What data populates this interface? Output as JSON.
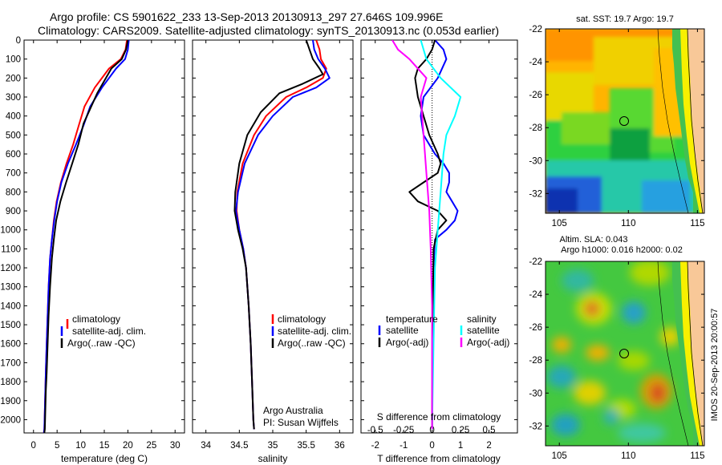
{
  "header": {
    "line1": "Argo profile: CS 5901622_233 13-Sep-2013 20130913_297 27.646S 109.996E",
    "line2": "Climatology: CARS2009. Satellite-adjusted climatology: synTS_20130913.nc (0.053d earlier)"
  },
  "colors": {
    "clim": "#ff0000",
    "sat": "#0000ff",
    "argo": "#000000",
    "sal_sat": "#00ffff",
    "sal_argo": "#ff00ff"
  },
  "depth_axis": {
    "ticks": [
      "0",
      "100",
      "200",
      "300",
      "400",
      "500",
      "600",
      "700",
      "800",
      "900",
      "1000",
      "1100",
      "1200",
      "1300",
      "1400",
      "1500",
      "1600",
      "1700",
      "1800",
      "1900",
      "2000"
    ]
  },
  "chart_data": [
    {
      "type": "line",
      "xlabel": "temperature (deg C)",
      "xlim": [
        -2,
        32
      ],
      "ylim": [
        2070,
        0
      ],
      "x_ticks": [
        "0",
        "5",
        "10",
        "15",
        "20",
        "25",
        "30"
      ],
      "legend": [
        "climatology",
        "satellite-adj. clim.",
        "Argo(..raw -QC)"
      ],
      "series": [
        {
          "name": "climatology",
          "color": "#ff0000",
          "x": [
            19.8,
            19.5,
            18.5,
            16,
            13,
            10.8,
            9.6,
            8.4,
            7.0,
            5.8,
            4.9,
            4.3,
            3.9,
            3.5,
            3.2,
            3.0,
            2.8,
            2.6,
            2.5,
            2.4,
            2.3,
            2.2
          ],
          "y": [
            0,
            50,
            100,
            150,
            250,
            350,
            450,
            550,
            650,
            750,
            850,
            950,
            1050,
            1150,
            1300,
            1450,
            1600,
            1750,
            1850,
            1950,
            2050,
            2070
          ]
        },
        {
          "name": "satellite-adj. clim.",
          "color": "#0000ff",
          "x": [
            20.2,
            20,
            19.4,
            17.5,
            14.5,
            12,
            10.6,
            9,
            7.3,
            5.9,
            5.0,
            4.4,
            3.9,
            3.5,
            3.2,
            3.0,
            2.8,
            2.6,
            2.5,
            2.4,
            2.3,
            2.2
          ],
          "y": [
            0,
            50,
            100,
            150,
            250,
            350,
            450,
            550,
            650,
            750,
            850,
            950,
            1050,
            1150,
            1300,
            1450,
            1600,
            1750,
            1850,
            1950,
            2050,
            2070
          ]
        },
        {
          "name": "Argo(..raw -QC)",
          "color": "#000000",
          "x": [
            20,
            19.6,
            18.7,
            16.5,
            13.5,
            10.6,
            9.5,
            8.2,
            6.9,
            5.7,
            4.8,
            4.3,
            3.9,
            3.5,
            3.2,
            3.0,
            2.8,
            2.6,
            2.5,
            2.4,
            2.3
          ],
          "y": [
            0,
            50,
            100,
            150,
            280,
            440,
            550,
            650,
            750,
            850,
            950,
            1050,
            1150,
            1300,
            1450,
            1600,
            1750,
            1850,
            1950,
            2050,
            2070
          ]
        }
      ]
    },
    {
      "type": "line",
      "xlabel": "salinity",
      "xlim": [
        33.8,
        36.2
      ],
      "ylim": [
        2070,
        0
      ],
      "x_ticks": [
        "34",
        "34.5",
        "35",
        "35.5",
        "36"
      ],
      "legend": [
        "climatology",
        "satellite-adj. clim.",
        "Argo(..raw -QC)"
      ],
      "annotation": [
        "Argo Australia",
        "PI: Susan Wijffels"
      ],
      "series": [
        {
          "name": "climatology",
          "color": "#ff0000",
          "x": [
            35.65,
            35.7,
            35.72,
            35.8,
            35.75,
            35.5,
            35.2,
            34.9,
            34.72,
            34.55,
            34.47,
            34.46,
            34.5,
            34.56,
            34.6,
            34.64,
            34.67,
            34.69,
            34.7,
            34.71,
            34.72
          ],
          "y": [
            0,
            50,
            100,
            150,
            200,
            250,
            300,
            400,
            500,
            650,
            800,
            900,
            1000,
            1100,
            1200,
            1400,
            1600,
            1800,
            1900,
            2000,
            2050
          ]
        },
        {
          "name": "satellite-adj. clim.",
          "color": "#0000ff",
          "x": [
            35.6,
            35.62,
            35.68,
            35.78,
            35.85,
            35.65,
            35.3,
            35.0,
            34.78,
            34.58,
            34.48,
            34.45,
            34.5,
            34.56,
            34.6,
            34.64,
            34.67,
            34.69,
            34.7,
            34.71,
            34.72
          ],
          "y": [
            0,
            50,
            100,
            150,
            200,
            250,
            300,
            400,
            500,
            650,
            800,
            900,
            1000,
            1100,
            1200,
            1400,
            1600,
            1800,
            1900,
            2000,
            2050
          ]
        },
        {
          "name": "Argo(..raw -QC)",
          "color": "#000000",
          "x": [
            35.5,
            35.55,
            35.6,
            35.7,
            35.75,
            35.45,
            35.1,
            34.82,
            34.62,
            34.5,
            34.44,
            34.43,
            34.48,
            34.55,
            34.6,
            34.64,
            34.67,
            34.69,
            34.7,
            34.71,
            34.72
          ],
          "y": [
            0,
            50,
            100,
            150,
            180,
            230,
            280,
            380,
            500,
            650,
            800,
            900,
            1000,
            1100,
            1200,
            1400,
            1600,
            1800,
            1900,
            2000,
            2050
          ]
        }
      ]
    },
    {
      "type": "line",
      "xlabel": "T difference from climatology",
      "xlabel_top": "S difference from climatology",
      "xlim": [
        -2.5,
        3
      ],
      "ylim": [
        2070,
        0
      ],
      "x_ticks": [
        "-2",
        "-1",
        "0",
        "1",
        "2"
      ],
      "x_ticks_s": [
        "-0.5",
        "-0.25",
        "0",
        "0.25",
        "0.5"
      ],
      "legend_t": {
        "title": "temperature",
        "items": [
          "satellite",
          "Argo(-adj)"
        ]
      },
      "legend_s": {
        "title": "salinity",
        "items": [
          "satellite",
          "Argo(-adj)"
        ]
      },
      "series": [
        {
          "name": "temperature satellite",
          "color": "#0000ff",
          "x": [
            0.1,
            0.4,
            0.5,
            0.2,
            -0.3,
            -0.4,
            -0.3,
            0.1,
            0.4,
            0.6,
            0.6,
            0.5,
            0.7,
            0.9,
            0.8,
            0.5,
            0.1,
            0.05,
            0.02,
            0
          ],
          "y": [
            0,
            50,
            100,
            200,
            300,
            400,
            500,
            600,
            650,
            700,
            750,
            800,
            850,
            900,
            950,
            1000,
            1050,
            1200,
            1600,
            2050
          ]
        },
        {
          "name": "temperature Argo(-adj)",
          "color": "#000000",
          "x": [
            0.1,
            0.0,
            -0.2,
            -0.5,
            -0.6,
            -0.5,
            -0.3,
            -0.1,
            0.2,
            0.3,
            0.2,
            -0.3,
            -0.8,
            -0.5,
            0.2,
            0.5,
            0.2,
            0.05,
            0.02,
            0
          ],
          "y": [
            0,
            50,
            100,
            150,
            200,
            300,
            400,
            500,
            600,
            650,
            700,
            750,
            800,
            850,
            900,
            950,
            1000,
            1100,
            1600,
            2050
          ]
        },
        {
          "name": "salinity satellite",
          "color": "#00ffff",
          "x": [
            -0.4,
            -0.2,
            0.3,
            1.0,
            0.8,
            0.5,
            0.4,
            0.3,
            0.2,
            0.1,
            0.05,
            0
          ],
          "y": [
            0,
            100,
            200,
            300,
            400,
            500,
            600,
            800,
            1000,
            1200,
            1600,
            2050
          ]
        },
        {
          "name": "salinity Argo(-adj)",
          "color": "#ff00ff",
          "x": [
            -1.4,
            -1.2,
            -0.8,
            -0.2,
            -0.4,
            -0.3,
            -0.2,
            -0.1,
            -0.05,
            0,
            0
          ],
          "y": [
            0,
            50,
            100,
            200,
            300,
            500,
            700,
            900,
            1100,
            1400,
            2050
          ]
        }
      ]
    },
    {
      "type": "heatmap",
      "title": "sat. SST: 19.7  Argo: 19.7",
      "x_ticks": [
        "105",
        "110",
        "115"
      ],
      "y_ticks": [
        "-22",
        "-24",
        "-26",
        "-28",
        "-30",
        "-32"
      ],
      "xlim": [
        104,
        115.5
      ],
      "ylim": [
        -33.2,
        -22
      ],
      "argo_position": {
        "lon": 109.996,
        "lat": -27.646
      }
    },
    {
      "type": "heatmap",
      "title": "Altim. SLA: 0.043",
      "subtitle": "Argo h1000: 0.016 h2000: 0.02",
      "x_ticks": [
        "105",
        "110",
        "115"
      ],
      "y_ticks": [
        "-22",
        "-24",
        "-26",
        "-28",
        "-30",
        "-32"
      ],
      "xlim": [
        104,
        115.5
      ],
      "ylim": [
        -33.2,
        -22
      ],
      "argo_position": {
        "lon": 109.996,
        "lat": -27.646
      }
    }
  ],
  "stamp": "IMOS 20-Sep-2013 20:00:57"
}
